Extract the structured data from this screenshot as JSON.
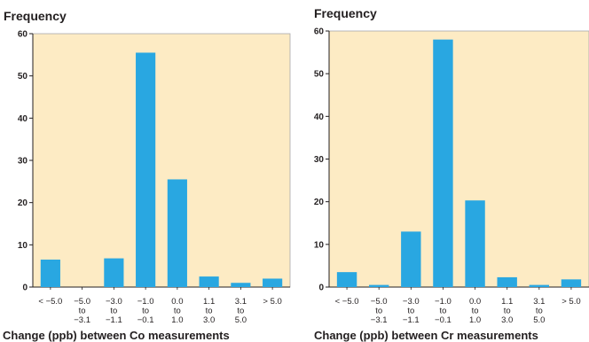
{
  "chart_data": [
    {
      "type": "bar",
      "title": "",
      "ylabel": "Frequency",
      "xlabel": "Change (ppb) between Co measurements",
      "ylim": [
        0,
        60
      ],
      "yticks": [
        0,
        10,
        20,
        30,
        40,
        50,
        60
      ],
      "grid": false,
      "plot_background": "#fdebc4",
      "bar_color": "#29a7e1",
      "categories": [
        [
          "< −5.0"
        ],
        [
          "−5.0",
          "to",
          "−3.1"
        ],
        [
          "−3.0",
          "to",
          "−1.1"
        ],
        [
          "−1.0",
          "to",
          "−0.1"
        ],
        [
          "0.0",
          "to",
          "1.0"
        ],
        [
          "1.1",
          "to",
          "3.0"
        ],
        [
          "3.1",
          "to",
          "5.0"
        ],
        [
          "> 5.0"
        ]
      ],
      "values": [
        6.5,
        0,
        6.8,
        55.5,
        25.5,
        2.5,
        1,
        2
      ]
    },
    {
      "type": "bar",
      "title": "",
      "ylabel": "Frequency",
      "xlabel": "Change (ppb) between Cr measurements",
      "ylim": [
        0,
        60
      ],
      "yticks": [
        0,
        10,
        20,
        30,
        40,
        50,
        60
      ],
      "grid": false,
      "plot_background": "#fdebc4",
      "bar_color": "#29a7e1",
      "categories": [
        [
          "< −5.0"
        ],
        [
          "−5.0",
          "to",
          "−3.1"
        ],
        [
          "−3.0",
          "to",
          "−1.1"
        ],
        [
          "−1.0",
          "to",
          "−0.1"
        ],
        [
          "0.0",
          "to",
          "1.0"
        ],
        [
          "1.1",
          "to",
          "3.0"
        ],
        [
          "3.1",
          "to",
          "5.0"
        ],
        [
          "> 5.0"
        ]
      ],
      "values": [
        3.5,
        0.5,
        13,
        58,
        20.3,
        2.3,
        0.5,
        1.8
      ]
    }
  ]
}
